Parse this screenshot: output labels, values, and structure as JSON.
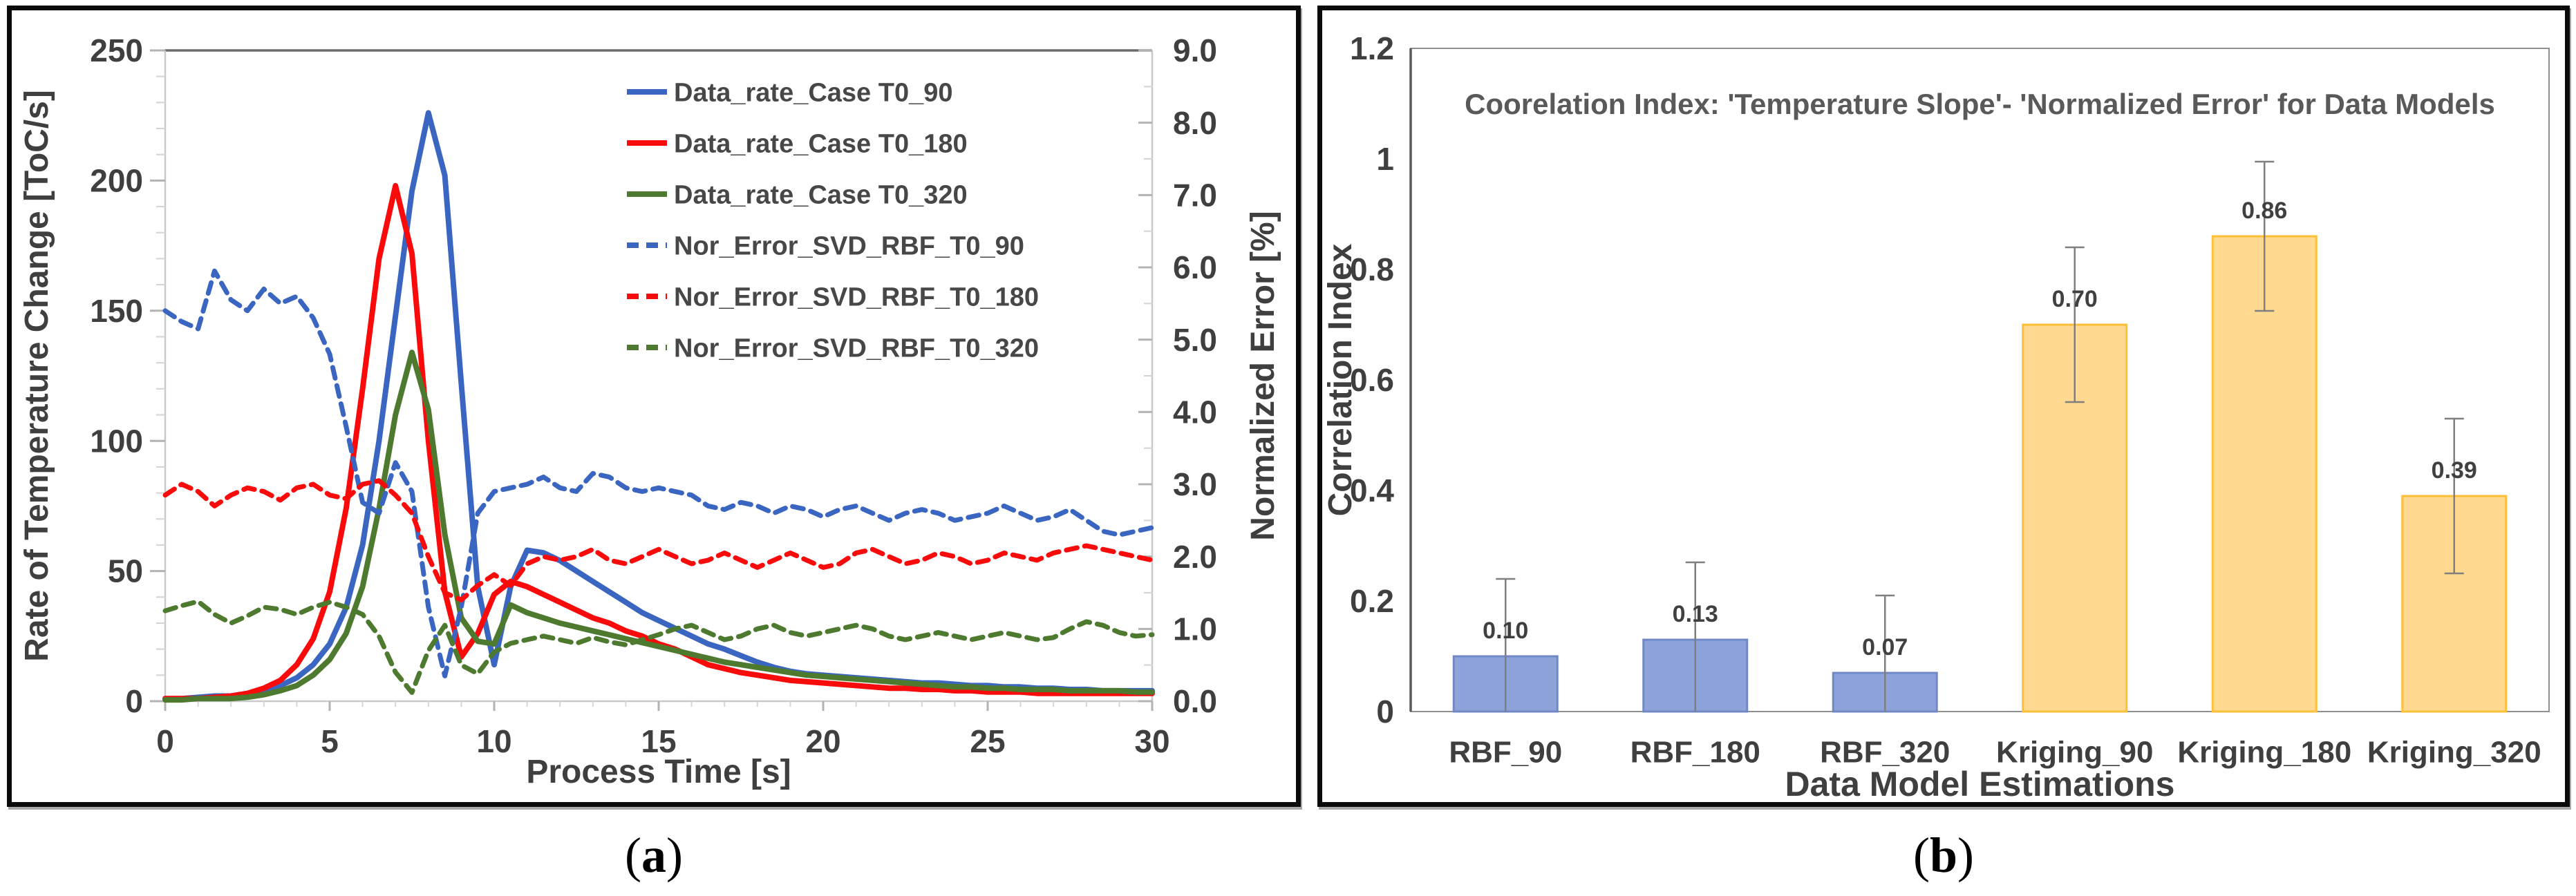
{
  "figure": {
    "background": "#ffffff",
    "captions": {
      "a": {
        "open": "(",
        "letter": "a",
        "close": ")"
      },
      "b": {
        "open": "(",
        "letter": "b",
        "close": ")"
      }
    }
  },
  "chart_data": [
    {
      "id": "a",
      "type": "line",
      "title": "",
      "colors": {
        "text": "#3f3f3f",
        "top_border": "#6b6b6b",
        "frame": "#c9c9c9",
        "tick_major": "#b3b3b3",
        "tick_minor": "#d6d6d6"
      },
      "axes": {
        "x": {
          "label": "Process Time [s]",
          "min": 0,
          "max": 30,
          "minor_step": 1,
          "ticks": [
            0,
            5,
            10,
            15,
            20,
            25,
            30
          ],
          "tick_labels": [
            "0",
            "5",
            "10",
            "15",
            "20",
            "25",
            "30"
          ]
        },
        "y_left": {
          "label": "Rate of Temperature Change [ToC/s]",
          "min": 0,
          "max": 250,
          "minor_step": 10,
          "ticks": [
            0,
            50,
            100,
            150,
            200,
            250
          ],
          "tick_labels": [
            "0",
            "50",
            "100",
            "150",
            "200",
            "250"
          ]
        },
        "y_right": {
          "label": "Normalized Error [%]",
          "min": 0,
          "max": 9,
          "minor_step": 0.5,
          "ticks": [
            0,
            1,
            2,
            3,
            4,
            5,
            6,
            7,
            8,
            9
          ],
          "tick_labels": [
            "0.0",
            "1.0",
            "2.0",
            "3.0",
            "4.0",
            "5.0",
            "6.0",
            "7.0",
            "8.0",
            "9.0"
          ]
        }
      },
      "legend": {
        "position": "top-right-inside"
      },
      "series": [
        {
          "name": "Data_rate_Case T0_90",
          "axis": "left",
          "style": "solid",
          "color": "#3a66c1",
          "t_start": 0,
          "t_step": 0.5,
          "values": [
            1,
            1,
            1.5,
            2,
            2,
            3,
            4,
            6,
            9,
            14,
            22,
            36,
            60,
            100,
            148,
            196,
            226,
            202,
            122,
            44,
            14,
            44,
            58,
            57,
            54,
            50,
            46,
            42,
            38,
            34,
            31,
            28,
            25,
            22,
            20,
            17.5,
            15,
            13,
            11.5,
            10.5,
            10,
            9.5,
            9,
            8.5,
            8,
            7.5,
            7,
            7,
            6.5,
            6,
            6,
            5.5,
            5.5,
            5,
            5,
            4.5,
            4.5,
            4,
            4,
            4,
            4
          ]
        },
        {
          "name": "Data_rate_Case T0_180",
          "axis": "left",
          "style": "solid",
          "color": "#f90b0b",
          "t_start": 0,
          "t_step": 0.5,
          "values": [
            1,
            1,
            1,
            1.5,
            2,
            3,
            5,
            8,
            14,
            24,
            42,
            74,
            120,
            170,
            198,
            172,
            100,
            42,
            17,
            26,
            41,
            46,
            44,
            41,
            38,
            35,
            32,
            30,
            27,
            25,
            22,
            20,
            17,
            14,
            12.5,
            11,
            10,
            9,
            8,
            7.5,
            7,
            6.5,
            6,
            5.5,
            5,
            5,
            4.5,
            4.5,
            4,
            4,
            3.5,
            3.5,
            3.5,
            3,
            3,
            3,
            3,
            3,
            3,
            3,
            3
          ]
        },
        {
          "name": "Data_rate_Case T0_320",
          "axis": "left",
          "style": "solid",
          "color": "#4e7a30",
          "t_start": 0,
          "t_step": 0.5,
          "values": [
            0.5,
            0.5,
            1,
            1,
            1,
            1.5,
            2.5,
            4,
            6,
            10,
            16,
            26,
            44,
            74,
            110,
            134,
            112,
            64,
            32,
            23,
            22,
            37,
            34,
            32,
            30,
            28.5,
            27,
            25.5,
            24,
            22.5,
            21,
            19.5,
            18,
            16.5,
            15,
            14,
            13,
            12,
            11,
            10,
            9.5,
            9,
            8.5,
            8,
            7.5,
            7,
            6.5,
            6,
            5.5,
            5.5,
            5,
            5,
            4.5,
            4.5,
            4.5,
            4,
            4,
            4,
            4,
            3.5,
            3.5
          ]
        },
        {
          "name": "Nor_Error_SVD_RBF_T0_90",
          "axis": "right",
          "style": "dashed",
          "color": "#3a66c1",
          "t_start": 0,
          "t_step": 0.5,
          "values": [
            5.4,
            5.25,
            5.15,
            5.95,
            5.55,
            5.4,
            5.7,
            5.5,
            5.6,
            5.3,
            4.8,
            3.8,
            2.75,
            2.6,
            3.3,
            2.9,
            1.3,
            0.35,
            1.3,
            2.6,
            2.9,
            2.95,
            3,
            3.1,
            2.95,
            2.9,
            3.15,
            3.1,
            2.95,
            2.9,
            2.95,
            2.9,
            2.85,
            2.7,
            2.65,
            2.75,
            2.7,
            2.6,
            2.7,
            2.65,
            2.55,
            2.65,
            2.7,
            2.6,
            2.5,
            2.6,
            2.65,
            2.6,
            2.5,
            2.55,
            2.6,
            2.7,
            2.6,
            2.5,
            2.55,
            2.65,
            2.5,
            2.35,
            2.3,
            2.35,
            2.4
          ]
        },
        {
          "name": "Nor_Error_SVD_RBF_T0_180",
          "axis": "right",
          "style": "dashed",
          "color": "#f90b0b",
          "t_start": 0,
          "t_step": 0.5,
          "values": [
            2.85,
            3,
            2.9,
            2.7,
            2.85,
            2.95,
            2.9,
            2.78,
            2.95,
            3,
            2.85,
            2.8,
            3,
            3.05,
            2.85,
            2.6,
            2,
            1.5,
            1.4,
            1.6,
            1.75,
            1.6,
            1.9,
            2,
            1.95,
            2,
            2.1,
            1.95,
            1.9,
            2,
            2.1,
            2,
            1.9,
            1.95,
            2.05,
            1.95,
            1.85,
            1.95,
            2.05,
            1.95,
            1.85,
            1.9,
            2.05,
            2.1,
            2,
            1.9,
            1.95,
            2.05,
            2,
            1.9,
            1.95,
            2.05,
            2,
            1.95,
            2.05,
            2.1,
            2.15,
            2.1,
            2.05,
            2,
            1.95
          ]
        },
        {
          "name": "Nor_Error_SVD_RBF_T0_320",
          "axis": "right",
          "style": "dashed",
          "color": "#4e7a30",
          "t_start": 0,
          "t_step": 0.5,
          "values": [
            1.25,
            1.32,
            1.38,
            1.2,
            1.08,
            1.18,
            1.3,
            1.27,
            1.2,
            1.3,
            1.37,
            1.3,
            1.2,
            0.9,
            0.4,
            0.12,
            0.7,
            1.05,
            0.5,
            0.38,
            0.68,
            0.8,
            0.85,
            0.9,
            0.85,
            0.8,
            0.88,
            0.82,
            0.78,
            0.85,
            0.92,
            1,
            1.05,
            0.95,
            0.85,
            0.9,
            1,
            1.05,
            0.95,
            0.9,
            0.95,
            1,
            1.05,
            1,
            0.9,
            0.85,
            0.9,
            0.95,
            0.9,
            0.85,
            0.9,
            0.95,
            0.9,
            0.85,
            0.88,
            1,
            1.1,
            1.05,
            0.95,
            0.9,
            0.92
          ]
        }
      ]
    },
    {
      "id": "b",
      "type": "bar",
      "title": "Coorelation Index: 'Temperature Slope'- 'Normalized Error' for Data Models",
      "xlabel": "Data Model Estimations",
      "ylabel": "Correlation Index",
      "ylim": [
        0,
        1.2
      ],
      "yticks": [
        0,
        0.2,
        0.4,
        0.6,
        0.8,
        1,
        1.2
      ],
      "ytick_labels": [
        "0",
        "0.2",
        "0.4",
        "0.6",
        "0.8",
        "1",
        "1.2"
      ],
      "categories": [
        "RBF_90",
        "RBF_180",
        "RBF_320",
        "Kriging_90",
        "Kriging_180",
        "Kriging_320"
      ],
      "values": [
        0.1,
        0.13,
        0.07,
        0.7,
        0.86,
        0.39
      ],
      "value_labels": [
        "0.10",
        "0.13",
        "0.07",
        "0.70",
        "0.86",
        "0.39"
      ],
      "errors": [
        0.14,
        0.14,
        0.14,
        0.14,
        0.135,
        0.14
      ],
      "bar_fills": [
        "#8fa3db",
        "#8fa3db",
        "#8fa3db",
        "#ffd98f",
        "#ffd98f",
        "#ffd98f"
      ],
      "bar_borders": [
        "#7288c4",
        "#7288c4",
        "#7288c4",
        "#ffc038",
        "#ffc038",
        "#ffc038"
      ],
      "error_color": "#7f7f7f",
      "colors": {
        "text": "#3f3f3f",
        "title": "#595959",
        "frame": "#8f8f8f",
        "axis": "#5a5a5a"
      },
      "grid": false,
      "legend_position": "none"
    }
  ]
}
